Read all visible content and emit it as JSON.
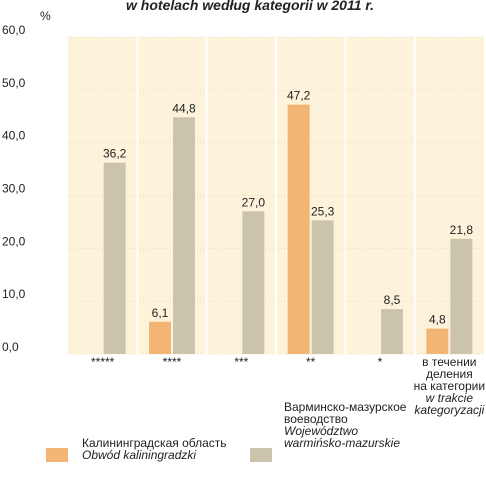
{
  "chart_data": {
    "type": "bar",
    "title": "w hotelach według kategorii w 2011 r.",
    "y_label": "%",
    "categories": [
      "*****",
      "****",
      "***",
      "**",
      "*",
      "в течении\nделения\nна категории\nw trakcie\nkategoryzacji"
    ],
    "series": [
      {
        "name": "Калининградская область\nObwód kaliningradzki",
        "color": "#f2b574",
        "values": [
          null,
          6.1,
          null,
          47.2,
          null,
          4.8
        ],
        "value_labels": [
          null,
          "6,1",
          null,
          "47,2",
          null,
          "4,8"
        ]
      },
      {
        "name": "Варминско-мазурское\nвоеводство\nWojewództwo\nwarmińsko-mazurskie",
        "color": "#cbc4ac",
        "values": [
          36.2,
          44.8,
          27.0,
          25.3,
          8.5,
          21.8
        ],
        "value_labels": [
          "36,2",
          "44,8",
          "27,0",
          "25,3",
          "8,5",
          "21,8"
        ]
      }
    ],
    "ylim": [
      0,
      60
    ],
    "yticks": [
      {
        "value": 0,
        "label": "0,0"
      },
      {
        "value": 10,
        "label": "10,0"
      },
      {
        "value": 20,
        "label": "20,0"
      },
      {
        "value": 30,
        "label": "30,0"
      },
      {
        "value": 40,
        "label": "40,0"
      },
      {
        "value": 50,
        "label": "50,0"
      },
      {
        "value": 60,
        "label": "60,0"
      }
    ],
    "grid": true
  }
}
